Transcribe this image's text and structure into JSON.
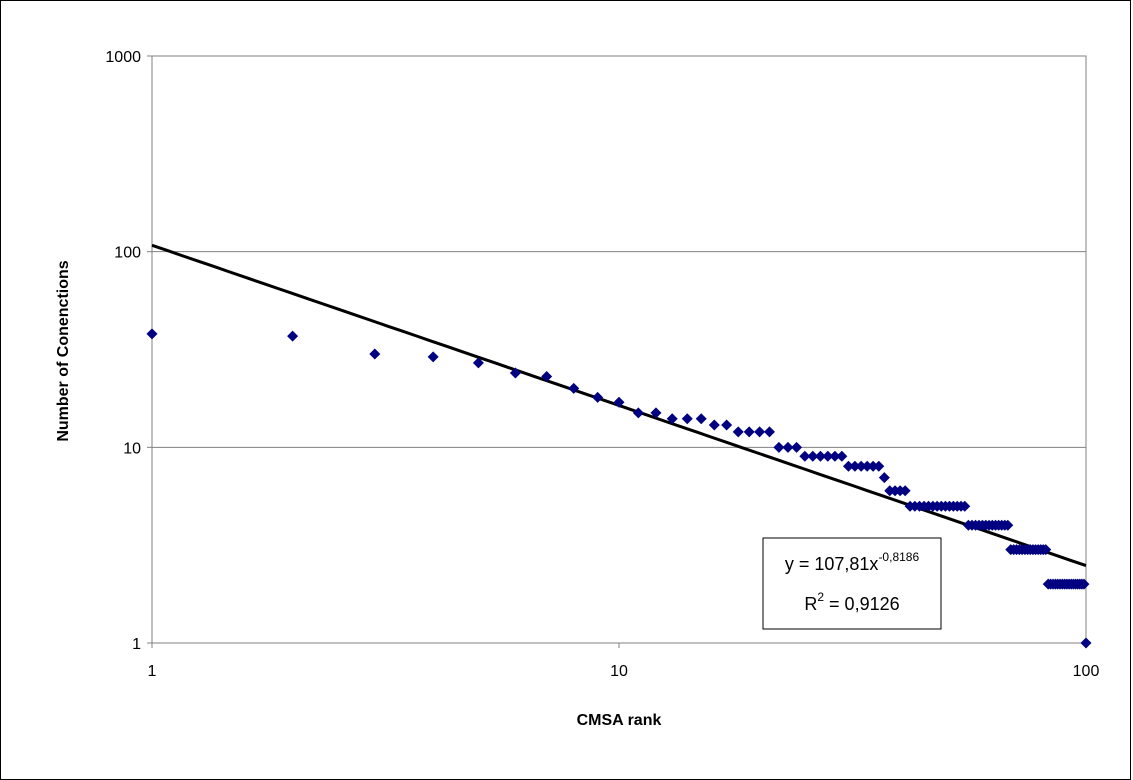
{
  "chart_data": {
    "type": "scatter",
    "xlabel": "CMSA rank",
    "ylabel": "Number of Conenctions",
    "x_scale": "log",
    "y_scale": "log",
    "xlim": [
      1,
      100
    ],
    "ylim": [
      1,
      1000
    ],
    "x_ticks": [
      "1",
      "10",
      "100"
    ],
    "y_ticks": [
      "1",
      "10",
      "100",
      "1000"
    ],
    "grid": "horizontal",
    "marker_color": "#000080",
    "trendline_color": "#000000",
    "series": [
      {
        "values": [
          [
            1,
            38
          ],
          [
            2,
            37
          ],
          [
            3,
            30
          ],
          [
            4,
            29
          ],
          [
            5,
            27
          ],
          [
            6,
            24
          ],
          [
            7,
            23
          ],
          [
            8,
            20
          ],
          [
            9,
            18
          ],
          [
            10,
            17
          ],
          [
            11,
            15
          ],
          [
            12,
            15
          ],
          [
            13,
            14
          ],
          [
            14,
            14
          ],
          [
            15,
            14
          ],
          [
            16,
            13
          ],
          [
            17,
            13
          ],
          [
            18,
            12
          ],
          [
            19,
            12
          ],
          [
            20,
            12
          ],
          [
            21,
            12
          ],
          [
            22,
            10
          ],
          [
            23,
            10
          ],
          [
            24,
            10
          ],
          [
            25,
            9
          ],
          [
            26,
            9
          ],
          [
            27,
            9
          ],
          [
            28,
            9
          ],
          [
            29,
            9
          ],
          [
            30,
            9
          ],
          [
            31,
            8
          ],
          [
            32,
            8
          ],
          [
            33,
            8
          ],
          [
            34,
            8
          ],
          [
            35,
            8
          ],
          [
            36,
            8
          ],
          [
            37,
            7
          ],
          [
            38,
            6
          ],
          [
            39,
            6
          ],
          [
            40,
            6
          ],
          [
            41,
            6
          ],
          [
            42,
            5
          ],
          [
            43,
            5
          ],
          [
            44,
            5
          ],
          [
            45,
            5
          ],
          [
            46,
            5
          ],
          [
            47,
            5
          ],
          [
            48,
            5
          ],
          [
            49,
            5
          ],
          [
            50,
            5
          ],
          [
            51,
            5
          ],
          [
            52,
            5
          ],
          [
            53,
            5
          ],
          [
            54,
            5
          ],
          [
            55,
            5
          ],
          [
            56,
            4
          ],
          [
            57,
            4
          ],
          [
            58,
            4
          ],
          [
            59,
            4
          ],
          [
            60,
            4
          ],
          [
            61,
            4
          ],
          [
            62,
            4
          ],
          [
            63,
            4
          ],
          [
            64,
            4
          ],
          [
            65,
            4
          ],
          [
            66,
            4
          ],
          [
            67,
            4
          ],
          [
            68,
            4
          ],
          [
            69,
            3
          ],
          [
            70,
            3
          ],
          [
            71,
            3
          ],
          [
            72,
            3
          ],
          [
            73,
            3
          ],
          [
            74,
            3
          ],
          [
            75,
            3
          ],
          [
            76,
            3
          ],
          [
            77,
            3
          ],
          [
            78,
            3
          ],
          [
            79,
            3
          ],
          [
            80,
            3
          ],
          [
            81,
            3
          ],
          [
            82,
            3
          ],
          [
            83,
            2
          ],
          [
            84,
            2
          ],
          [
            85,
            2
          ],
          [
            86,
            2
          ],
          [
            87,
            2
          ],
          [
            88,
            2
          ],
          [
            89,
            2
          ],
          [
            90,
            2
          ],
          [
            91,
            2
          ],
          [
            92,
            2
          ],
          [
            93,
            2
          ],
          [
            94,
            2
          ],
          [
            95,
            2
          ],
          [
            96,
            2
          ],
          [
            97,
            2
          ],
          [
            98,
            2
          ],
          [
            99,
            2
          ],
          [
            100,
            1
          ]
        ]
      }
    ],
    "trendline": {
      "type": "power",
      "coefficient": 107.81,
      "exponent": -0.8186,
      "equation_prefix": "y = 107,81x",
      "equation_exponent": "-0,8186",
      "r2_label": "R",
      "r2_sup": "2",
      "r2_value": " = 0,9126",
      "box_placement": "lower-right"
    }
  }
}
